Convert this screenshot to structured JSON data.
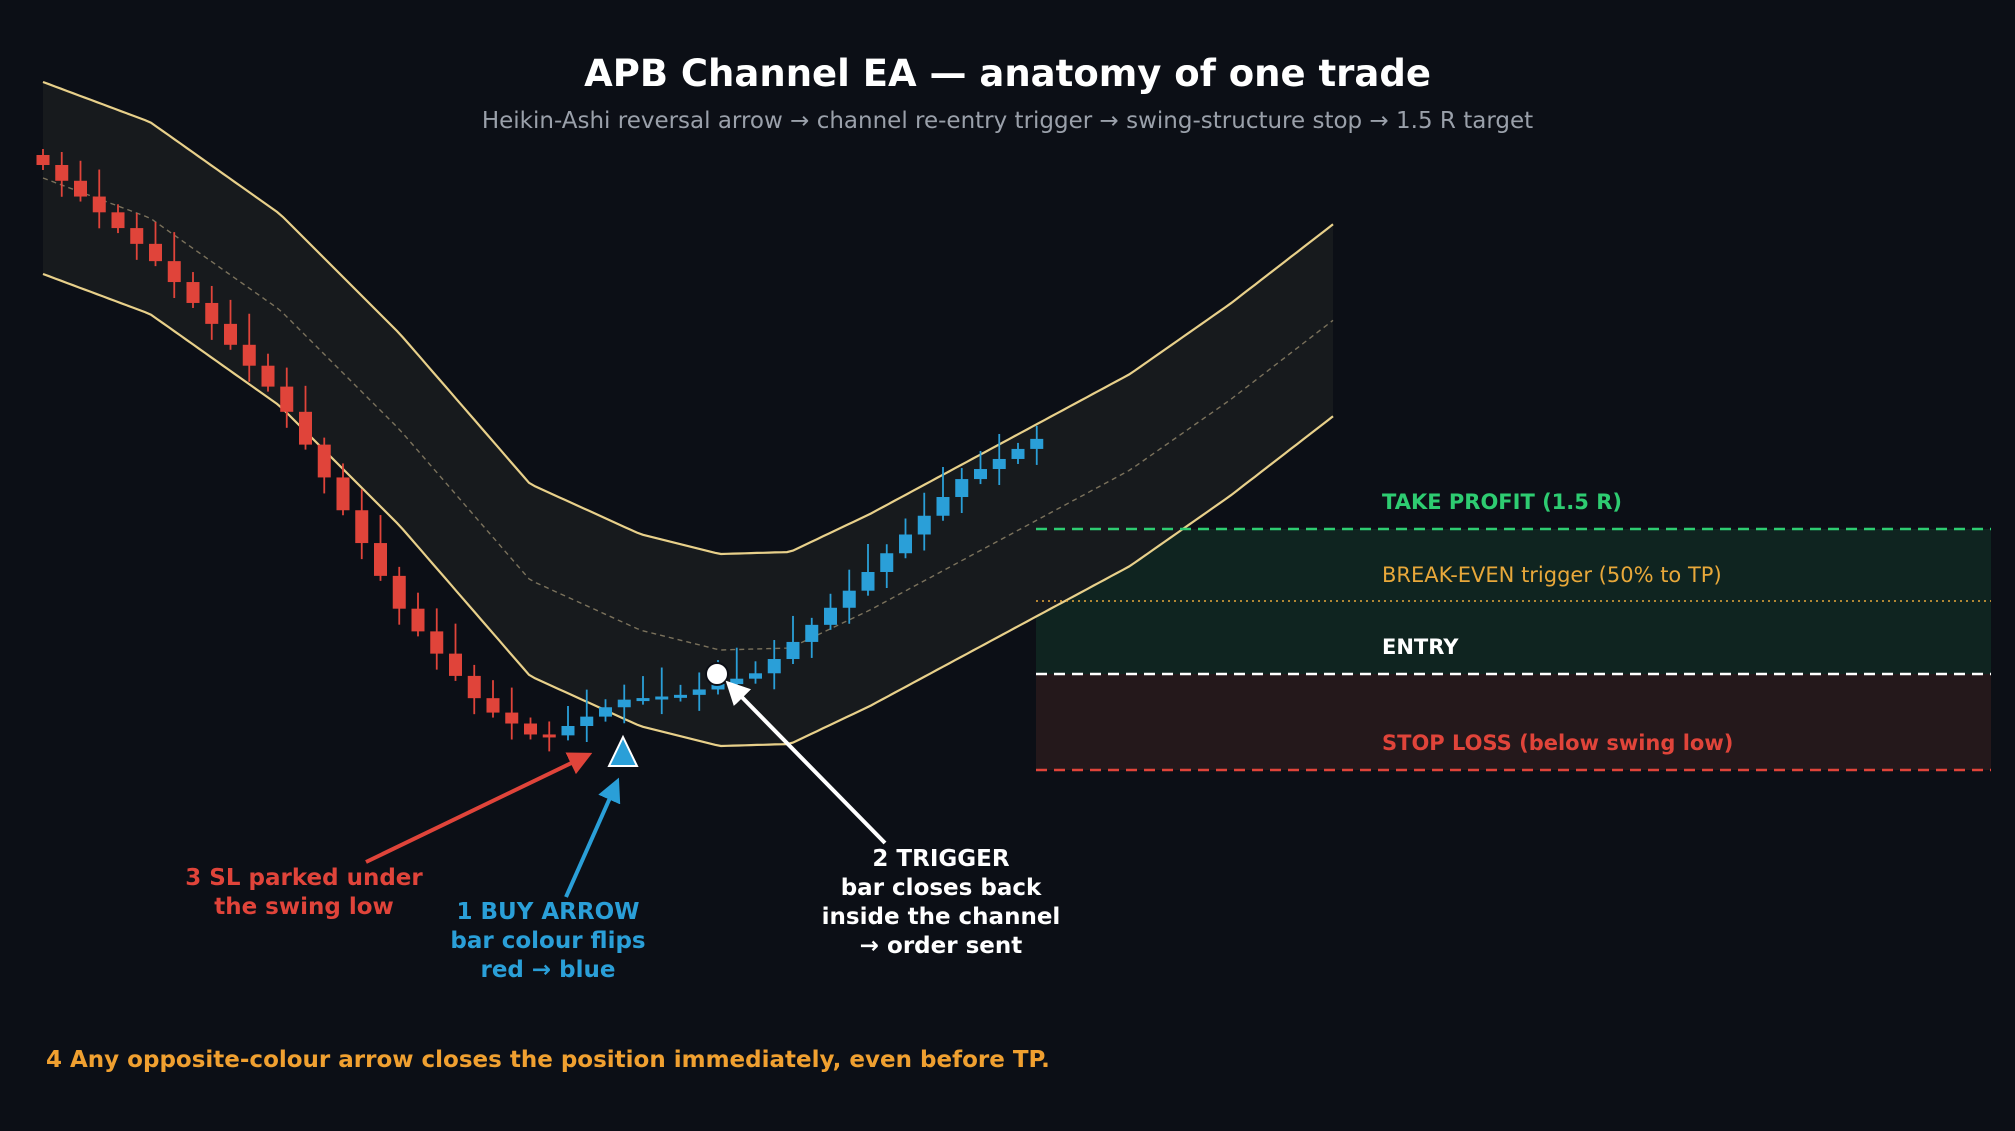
{
  "title": "APB Channel EA  —  anatomy of one trade",
  "subtitle": "Heikin-Ashi reversal arrow  →  channel re-entry trigger  →  swing-structure stop  →  1.5 R target",
  "levels": {
    "take_profit": "TAKE PROFIT  (1.5 R)",
    "break_even": "BREAK-EVEN trigger (50% to TP)",
    "entry": "ENTRY",
    "stop_loss": "STOP LOSS  (below swing low)"
  },
  "notes": {
    "sl": {
      "line1": "3  SL parked under",
      "line2": "the swing low"
    },
    "buy": {
      "line1": "1  BUY ARROW",
      "line2": "bar colour flips",
      "line3": "red → blue"
    },
    "trigger": {
      "line1": "2  TRIGGER",
      "line2": "bar closes back",
      "line3": "inside the channel",
      "line4": "→ order sent"
    }
  },
  "footer": "4   Any opposite-colour arrow closes the position immediately, even before TP.",
  "colors": {
    "background": "#0c0f16",
    "bear": "#e0443a",
    "bull": "#2a9fd8",
    "band": "#e8d08a",
    "take_profit": "#2ecc71",
    "break_even": "#e8a83a",
    "entry": "#ffffff",
    "stop_loss": "#e0443a",
    "footer": "#f0a030"
  }
}
